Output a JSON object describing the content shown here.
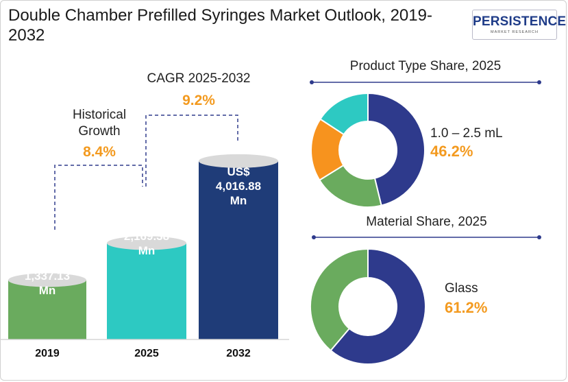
{
  "header": {
    "title": "Double Chamber Prefilled Syringes Market Outlook, 2019-2032",
    "logo_text": "PERSISTENCE",
    "logo_subtext": "MARKET RESEARCH"
  },
  "annotations": {
    "historical_label": "Historical Growth",
    "historical_value": "8.4%",
    "cagr_label": "CAGR 2025-2032",
    "cagr_value": "9.2%"
  },
  "chart_data": [
    {
      "type": "bar",
      "title": "",
      "categories": [
        "2019",
        "2025",
        "2032"
      ],
      "values": [
        1337.13,
        2169.38,
        4016.88
      ],
      "value_labels": [
        "US$ 1,337.13 Mn",
        "US$ 2,169.38 Mn",
        "US$ 4,016.88 Mn"
      ],
      "unit": "US$ Mn",
      "colors": [
        "#6aab5e",
        "#2dc9c2",
        "#1f3c78"
      ],
      "xlabel": "",
      "ylabel": "",
      "grid": false,
      "legend": "none"
    },
    {
      "type": "pie",
      "donut": true,
      "title": "Product Type  Share, 2025",
      "slices": [
        {
          "value": 46.2,
          "color": "#2e3a8c"
        },
        {
          "value": 20.0,
          "color": "#6aab5e"
        },
        {
          "value": 18.0,
          "color": "#f7931e"
        },
        {
          "value": 15.8,
          "color": "#2dc9c2"
        }
      ],
      "highlight": {
        "label": "1.0 – 2.5 mL",
        "value": "46.2%"
      }
    },
    {
      "type": "pie",
      "donut": true,
      "title": "Material  Share, 2025",
      "slices": [
        {
          "value": 61.2,
          "color": "#2e3a8c"
        },
        {
          "value": 38.8,
          "color": "#6aab5e"
        }
      ],
      "highlight": {
        "label": "Glass",
        "value": "61.2%"
      }
    }
  ]
}
